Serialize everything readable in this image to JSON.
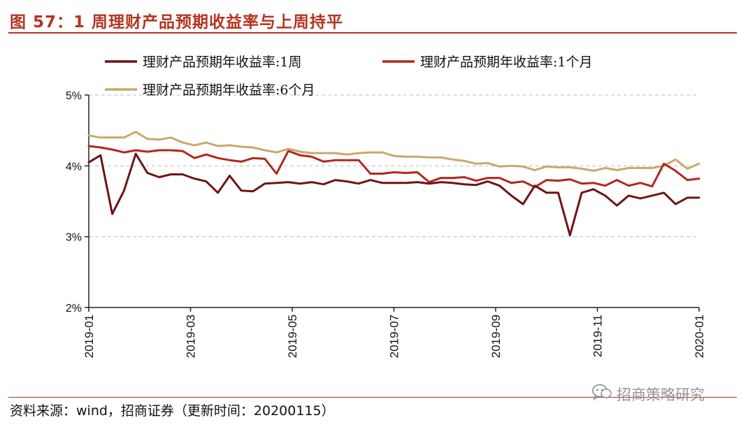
{
  "header": {
    "title": "图 57：1 周理财产品预期收益率与上周持平"
  },
  "footer": {
    "source": "资料来源：wind，招商证券（更新时间：20200115）",
    "watermark": "招商策略研究",
    "watermark_icon": "wechat-icon"
  },
  "colors": {
    "series_1w": "#6e1414",
    "series_1m": "#b3261e",
    "series_6m": "#c9a86a",
    "title": "#b5341f",
    "grid": "#bdbdbd"
  },
  "chart_data": {
    "type": "line",
    "title": "图 57：1 周理财产品预期收益率与上周持平",
    "xlabel": "",
    "ylabel": "",
    "ylim": [
      2,
      5
    ],
    "yticks": [
      "2%",
      "3%",
      "4%",
      "5%"
    ],
    "xticks": [
      "2019-01",
      "2019-03",
      "2019-05",
      "2019-07",
      "2019-09",
      "2019-11",
      "2020-01"
    ],
    "grid": "horizontal-dashed",
    "legend_position": "top",
    "series": [
      {
        "name": "理财产品预期年收益率:1周",
        "color": "#6e1414",
        "values": [
          4.05,
          4.15,
          3.32,
          3.65,
          4.17,
          3.9,
          3.84,
          3.88,
          3.88,
          3.82,
          3.78,
          3.62,
          3.86,
          3.65,
          3.64,
          3.75,
          3.76,
          3.77,
          3.75,
          3.77,
          3.74,
          3.8,
          3.78,
          3.75,
          3.8,
          3.76,
          3.76,
          3.76,
          3.77,
          3.75,
          3.77,
          3.76,
          3.74,
          3.73,
          3.78,
          3.72,
          3.58,
          3.46,
          3.72,
          3.62,
          3.62,
          3.02,
          3.62,
          3.67,
          3.58,
          3.44,
          3.58,
          3.54,
          3.58,
          3.62,
          3.46,
          3.55,
          3.55
        ]
      },
      {
        "name": "理财产品预期年收益率:1个月",
        "color": "#b3261e",
        "values": [
          4.28,
          4.26,
          4.23,
          4.19,
          4.22,
          4.2,
          4.22,
          4.22,
          4.21,
          4.11,
          4.16,
          4.11,
          4.08,
          4.06,
          4.11,
          4.1,
          3.89,
          4.21,
          4.15,
          4.13,
          4.06,
          4.08,
          4.08,
          4.08,
          3.89,
          3.89,
          3.91,
          3.9,
          3.91,
          3.77,
          3.83,
          3.83,
          3.84,
          3.79,
          3.83,
          3.83,
          3.76,
          3.78,
          3.7,
          3.8,
          3.79,
          3.81,
          3.75,
          3.76,
          3.72,
          3.8,
          3.72,
          3.76,
          3.71,
          4.03,
          3.93,
          3.8,
          3.82
        ]
      },
      {
        "name": "理财产品预期年收益率:6个月",
        "color": "#c9a86a",
        "values": [
          4.43,
          4.4,
          4.4,
          4.4,
          4.48,
          4.38,
          4.37,
          4.4,
          4.33,
          4.29,
          4.33,
          4.28,
          4.29,
          4.27,
          4.26,
          4.22,
          4.19,
          4.24,
          4.2,
          4.18,
          4.18,
          4.18,
          4.16,
          4.18,
          4.19,
          4.19,
          4.14,
          4.13,
          4.13,
          4.12,
          4.12,
          4.09,
          4.07,
          4.03,
          4.04,
          3.99,
          4.0,
          3.99,
          3.94,
          3.99,
          3.98,
          3.98,
          3.96,
          3.93,
          3.97,
          3.94,
          3.97,
          3.97,
          3.97,
          4.0,
          4.09,
          3.96,
          4.03
        ]
      }
    ]
  }
}
